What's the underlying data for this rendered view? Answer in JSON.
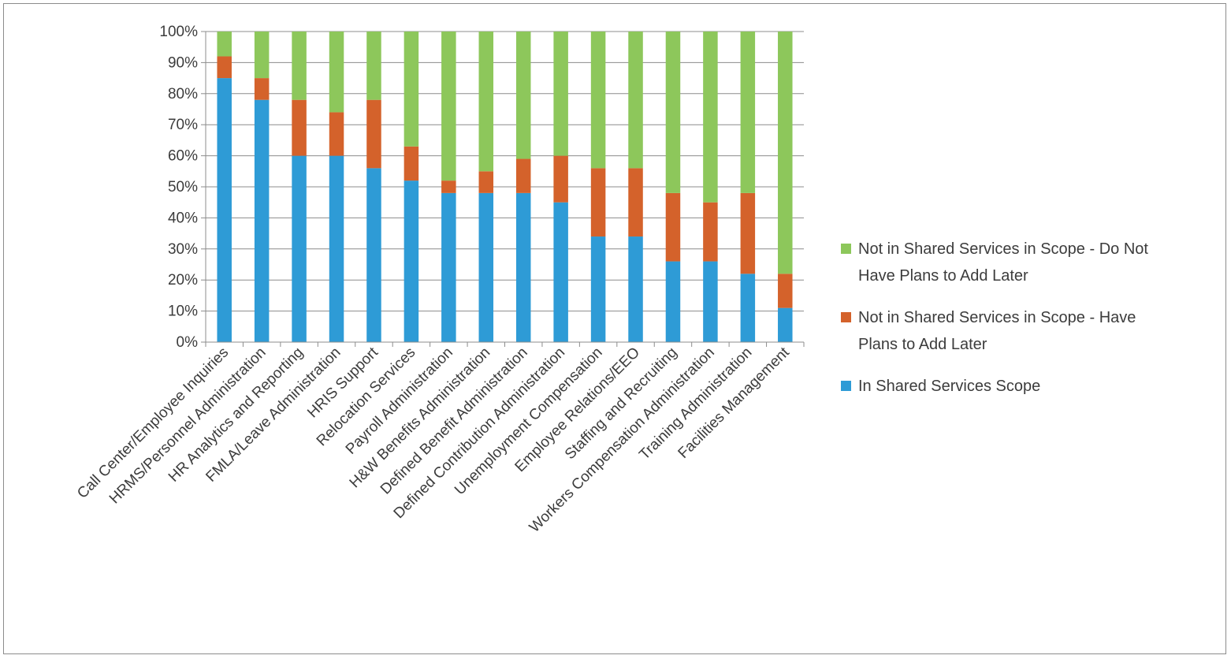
{
  "chart_data": {
    "type": "bar",
    "stacked": true,
    "normalized": true,
    "ylim": [
      0,
      100
    ],
    "y_ticks": [
      "0%",
      "10%",
      "20%",
      "30%",
      "40%",
      "50%",
      "60%",
      "70%",
      "80%",
      "90%",
      "100%"
    ],
    "grid": true,
    "legend_position": "right",
    "categories": [
      "Call Center/Employee Inquiries",
      "HRMS/Personnel Administration",
      "HR Analytics and Reporting",
      "FMLA/Leave Administration",
      "HRIS Support",
      "Relocation Services",
      "Payroll Administration",
      "H&W Benefits Administration",
      "Defined Benefit Administration",
      "Defined Contribution Administration",
      "Unemployment Compensation",
      "Employee Relations/EEO",
      "Staffing and Recruiting",
      "Workers Compensation Administration",
      "Training Administration",
      "Facilities Management"
    ],
    "series": [
      {
        "name": "In Shared Services Scope",
        "color": "#2e9bd6",
        "values": [
          85,
          78,
          60,
          60,
          56,
          52,
          48,
          48,
          48,
          45,
          34,
          34,
          26,
          26,
          22,
          11
        ]
      },
      {
        "name": "Not in Shared Services in Scope - Have Plans to Add Later",
        "color": "#d4622b",
        "values": [
          7,
          7,
          18,
          14,
          22,
          11,
          4,
          7,
          11,
          15,
          22,
          22,
          22,
          19,
          26,
          11
        ]
      },
      {
        "name": "Not in Shared Services in Scope - Do Not Have Plans to Add Later",
        "color": "#8dc75b",
        "values": [
          8,
          15,
          22,
          26,
          22,
          37,
          48,
          45,
          41,
          40,
          44,
          44,
          52,
          55,
          52,
          78
        ]
      }
    ]
  },
  "legend": {
    "entries": [
      {
        "lines": [
          "Not in Shared Services in Scope - Do Not",
          "Have Plans to Add Later"
        ],
        "color": "#8dc75b"
      },
      {
        "lines": [
          "Not in Shared Services in Scope - Have",
          "Plans to Add Later"
        ],
        "color": "#d4622b"
      },
      {
        "lines": [
          "In Shared Services Scope"
        ],
        "color": "#2e9bd6"
      }
    ]
  }
}
